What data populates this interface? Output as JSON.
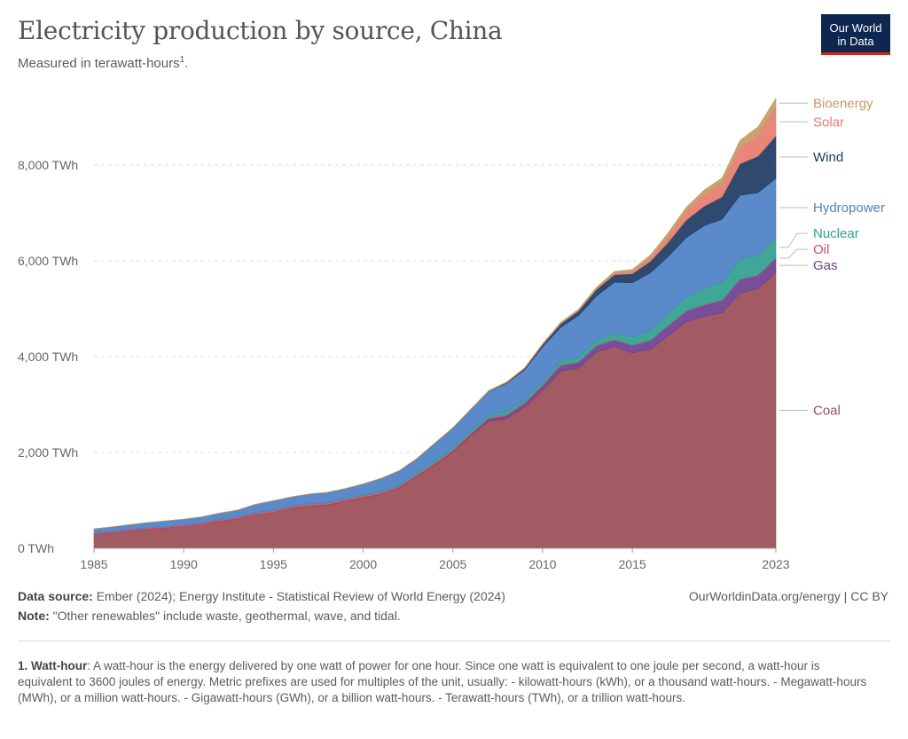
{
  "header": {
    "title": "Electricity production by source, China",
    "subtitle": "Measured in terawatt-hours",
    "subtitle_sup": "1",
    "subtitle_end": ".",
    "logo_line1": "Our World",
    "logo_line2": "in Data"
  },
  "footer": {
    "source_label": "Data source:",
    "source_text": " Ember (2024); Energy Institute - Statistical Review of World Energy (2024)",
    "note_label": "Note:",
    "note_text": " \"Other renewables\" include waste, geothermal, wave, and tidal.",
    "credit": "OurWorldinData.org/energy | CC BY",
    "footnote_label": "1. Watt-hour",
    "footnote_text": ": A watt-hour is the energy delivered by one watt of power for one hour. Since one watt is equivalent to one joule per second, a watt-hour is equivalent to 3600 joules of energy. Metric prefixes are used for multiples of the unit, usually: - kilowatt-hours (kWh), or a thousand watt-hours. - Megawatt-hours (MWh), or a million watt-hours. - Gigawatt-hours (GWh), or a billion watt-hours. - Terawatt-hours (TWh), or a trillion watt-hours."
  },
  "chart_data": {
    "type": "area",
    "stacked": true,
    "unit": "TWh",
    "x": [
      1985,
      1986,
      1987,
      1988,
      1989,
      1990,
      1991,
      1992,
      1993,
      1994,
      1995,
      1996,
      1997,
      1998,
      1999,
      2000,
      2001,
      2002,
      2003,
      2004,
      2005,
      2006,
      2007,
      2008,
      2009,
      2010,
      2011,
      2012,
      2013,
      2014,
      2015,
      2016,
      2017,
      2018,
      2019,
      2020,
      2021,
      2022,
      2023
    ],
    "xlim": [
      1985,
      2023
    ],
    "xticks": [
      1985,
      1990,
      1995,
      2000,
      2005,
      2010,
      2015,
      2023
    ],
    "ylim": [
      0,
      10000
    ],
    "yticks": [
      0,
      2000,
      4000,
      6000,
      8000
    ],
    "ytick_labels": [
      "0 TWh",
      "2,000 TWh",
      "4,000 TWh",
      "6,000 TWh",
      "8,000 TWh"
    ],
    "grid": "horizontal dashed",
    "legend_position": "right",
    "series": [
      {
        "name": "Coal",
        "color": "#9a4d55",
        "values": [
          290,
          325,
          365,
          400,
          425,
          450,
          500,
          570,
          610,
          700,
          750,
          830,
          880,
          900,
          980,
          1060,
          1120,
          1260,
          1500,
          1740,
          2010,
          2350,
          2650,
          2710,
          2950,
          3300,
          3700,
          3760,
          4100,
          4210,
          4080,
          4150,
          4440,
          4730,
          4840,
          4920,
          5330,
          5420,
          5760
        ]
      },
      {
        "name": "Gas",
        "color": "#6d3e91",
        "values": [
          3,
          3,
          3,
          3,
          3,
          3,
          3,
          3,
          4,
          5,
          6,
          6,
          7,
          8,
          8,
          8,
          9,
          10,
          12,
          14,
          15,
          25,
          55,
          60,
          70,
          90,
          110,
          115,
          120,
          135,
          150,
          180,
          200,
          215,
          235,
          250,
          280,
          270,
          290
        ]
      },
      {
        "name": "Oil",
        "color": "#dc4b5d",
        "values": [
          20,
          22,
          24,
          25,
          25,
          25,
          26,
          27,
          28,
          30,
          31,
          32,
          33,
          34,
          35,
          33,
          32,
          30,
          30,
          32,
          30,
          28,
          25,
          22,
          20,
          18,
          15,
          14,
          12,
          12,
          12,
          11,
          10,
          10,
          10,
          10,
          11,
          11,
          12
        ]
      },
      {
        "name": "Nuclear",
        "color": "#30a08f",
        "values": [
          0,
          0,
          0,
          0,
          0,
          0,
          1,
          1,
          3,
          14,
          13,
          14,
          14,
          14,
          15,
          17,
          18,
          25,
          43,
          50,
          53,
          55,
          62,
          68,
          70,
          74,
          87,
          97,
          112,
          133,
          171,
          213,
          248,
          295,
          348,
          366,
          408,
          418,
          435
        ]
      },
      {
        "name": "Hydropower",
        "color": "#4c80c5",
        "values": [
          92,
          95,
          100,
          109,
          118,
          127,
          125,
          131,
          151,
          168,
          191,
          188,
          196,
          208,
          204,
          222,
          277,
          288,
          284,
          354,
          397,
          436,
          485,
          585,
          616,
          722,
          699,
          872,
          920,
          1064,
          1130,
          1193,
          1194,
          1232,
          1302,
          1322,
          1340,
          1303,
          1226
        ]
      },
      {
        "name": "Wind",
        "color": "#1d3b62",
        "values": [
          0,
          0,
          0,
          0,
          0,
          0,
          0,
          0,
          0,
          0,
          1,
          1,
          1,
          1,
          2,
          2,
          2,
          2,
          3,
          4,
          5,
          4,
          6,
          15,
          28,
          45,
          70,
          96,
          138,
          156,
          186,
          241,
          295,
          366,
          406,
          467,
          656,
          762,
          886
        ]
      },
      {
        "name": "Solar",
        "color": "#e87c6e",
        "values": [
          0,
          0,
          0,
          0,
          0,
          0,
          0,
          0,
          0,
          0,
          0,
          0,
          0,
          0,
          0,
          0,
          0,
          0,
          0,
          0,
          0,
          0,
          0,
          0,
          0,
          1,
          3,
          4,
          8,
          24,
          39,
          67,
          118,
          177,
          224,
          261,
          327,
          427,
          584
        ]
      },
      {
        "name": "Bioenergy",
        "color": "#c59a65",
        "values": [
          2,
          2,
          2,
          2,
          2,
          2,
          2,
          3,
          3,
          3,
          3,
          3,
          3,
          3,
          4,
          4,
          4,
          5,
          6,
          7,
          8,
          10,
          12,
          14,
          18,
          25,
          32,
          34,
          40,
          45,
          52,
          65,
          80,
          91,
          111,
          134,
          163,
          183,
          197
        ]
      }
    ]
  }
}
